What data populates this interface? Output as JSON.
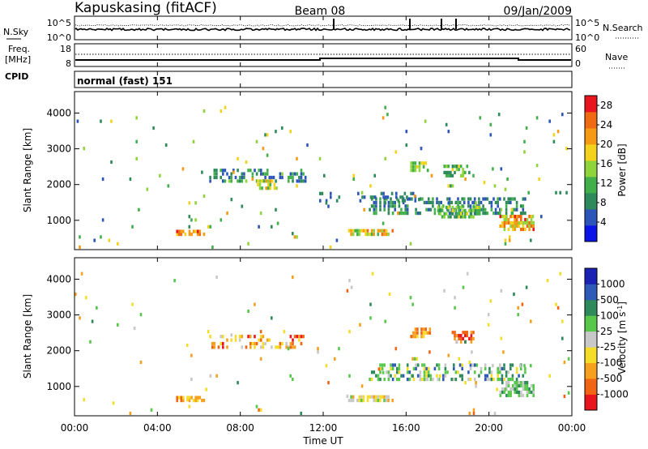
{
  "header": {
    "site": "Kapuskasing (fitACF)",
    "beam": "Beam 08",
    "date": "09/Jan/2009"
  },
  "nsky_panel": {
    "left_label": "N.Sky",
    "left_ticks": [
      "10^5",
      "10^0"
    ],
    "right_label": "N.Search",
    "right_ticks": [
      "10^5",
      "10^0"
    ]
  },
  "freq_panel": {
    "left_label_1": "Freq.",
    "left_label_2": "[MHz]",
    "left_ticks": [
      "18",
      "8"
    ],
    "right_label": "Nave",
    "right_ticks": [
      "60",
      "0"
    ]
  },
  "cpid_panel": {
    "label": "CPID",
    "mode": "normal (fast) 151"
  },
  "colors": {
    "power_scale": [
      "#0a14e6",
      "#2d55b9",
      "#2e8a5a",
      "#42b04a",
      "#8fd43a",
      "#f2d21c",
      "#f59a12",
      "#f06a14",
      "#e8141e"
    ],
    "velocity_scale": [
      "#1a22b4",
      "#2f5ab8",
      "#2e8a5a",
      "#58c84c",
      "#c8c8c8",
      "#f5dc28",
      "#f5a01e",
      "#f06414",
      "#e8141e"
    ]
  },
  "chart_data": [
    {
      "type": "heatmap",
      "name": "power",
      "ylabel": "Slant Range [km]",
      "ylim": [
        180,
        4600
      ],
      "yticks": [
        "1000",
        "2000",
        "3000",
        "4000"
      ],
      "xlim": [
        0,
        24
      ],
      "xticks": [
        "00:00",
        "04:00",
        "08:00",
        "12:00",
        "16:00",
        "20:00",
        "00:00"
      ],
      "colorbar": {
        "label": "Power [dB]",
        "range": [
          0,
          30
        ],
        "ticks": [
          "4",
          "8",
          "12",
          "16",
          "20",
          "24",
          "28"
        ]
      },
      "regions": [
        {
          "t0": 4.9,
          "t1": 6.3,
          "r0": 560,
          "r1": 720,
          "v0": 16,
          "v1": 28,
          "d": 0.75
        },
        {
          "t0": 13.2,
          "t1": 15.4,
          "r0": 560,
          "r1": 760,
          "v0": 10,
          "v1": 26,
          "d": 0.7
        },
        {
          "t0": 6.5,
          "t1": 11.2,
          "r0": 2050,
          "r1": 2450,
          "v0": 4,
          "v1": 14,
          "d": 0.45
        },
        {
          "t0": 8.8,
          "t1": 9.8,
          "r0": 1850,
          "r1": 2150,
          "v0": 12,
          "v1": 22,
          "d": 0.6
        },
        {
          "t0": 14.2,
          "t1": 21.8,
          "r0": 1150,
          "r1": 1650,
          "v0": 4,
          "v1": 12,
          "d": 0.45
        },
        {
          "t0": 17.5,
          "t1": 19.6,
          "r0": 1050,
          "r1": 1400,
          "v0": 8,
          "v1": 18,
          "d": 0.6
        },
        {
          "t0": 20.5,
          "t1": 22.2,
          "r0": 700,
          "r1": 1150,
          "v0": 14,
          "v1": 28,
          "d": 0.75
        },
        {
          "t0": 16.2,
          "t1": 17.2,
          "r0": 2350,
          "r1": 2650,
          "v0": 10,
          "v1": 18,
          "d": 0.7
        },
        {
          "t0": 17.8,
          "t1": 19.3,
          "r0": 2200,
          "r1": 2550,
          "v0": 6,
          "v1": 18,
          "d": 0.5
        },
        {
          "t0": 11.6,
          "t1": 16.5,
          "r0": 1500,
          "r1": 1800,
          "v0": 4,
          "v1": 10,
          "d": 0.25
        },
        {
          "t0": 0.0,
          "t1": 24.0,
          "r0": 200,
          "r1": 4200,
          "v0": 4,
          "v1": 22,
          "d": 0.012
        }
      ]
    },
    {
      "type": "heatmap",
      "name": "velocity",
      "ylabel": "Slant Range [km]",
      "ylim": [
        180,
        4600
      ],
      "yticks": [
        "1000",
        "2000",
        "3000",
        "4000"
      ],
      "xlim": [
        0,
        24
      ],
      "xticks": [
        "00:00",
        "04:00",
        "08:00",
        "12:00",
        "16:00",
        "20:00",
        "00:00"
      ],
      "xlabel": "Time UT",
      "colorbar": {
        "label": "Velocity [m s^-1]",
        "ticks": [
          "1000",
          "500",
          "100",
          "25",
          "-25",
          "-100",
          "-500",
          "-1000"
        ]
      },
      "regions": [
        {
          "t0": 4.9,
          "t1": 6.3,
          "r0": 560,
          "r1": 720,
          "v0": 5,
          "v1": 7,
          "d": 0.7
        },
        {
          "t0": 13.2,
          "t1": 15.4,
          "r0": 560,
          "r1": 760,
          "v0": 3,
          "v1": 6,
          "d": 0.7
        },
        {
          "t0": 6.5,
          "t1": 11.2,
          "r0": 2050,
          "r1": 2450,
          "v0": 4,
          "v1": 8,
          "d": 0.35
        },
        {
          "t0": 14.2,
          "t1": 21.8,
          "r0": 1150,
          "r1": 1650,
          "v0": 1,
          "v1": 5,
          "d": 0.4
        },
        {
          "t0": 20.5,
          "t1": 22.2,
          "r0": 700,
          "r1": 1150,
          "v0": 2,
          "v1": 4,
          "d": 0.65
        },
        {
          "t0": 16.2,
          "t1": 17.2,
          "r0": 2350,
          "r1": 2650,
          "v0": 5,
          "v1": 7,
          "d": 0.65
        },
        {
          "t0": 18.2,
          "t1": 19.3,
          "r0": 2200,
          "r1": 2550,
          "v0": 6,
          "v1": 8,
          "d": 0.55
        },
        {
          "t0": 0.0,
          "t1": 24.0,
          "r0": 200,
          "r1": 4200,
          "v0": 2,
          "v1": 7,
          "d": 0.012
        }
      ]
    }
  ]
}
